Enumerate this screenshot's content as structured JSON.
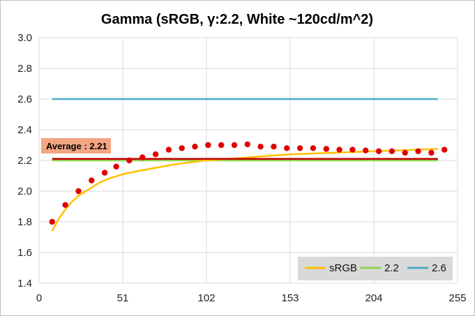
{
  "chart_data": {
    "type": "line",
    "title": "Gamma (sRGB, γ:2.2, White ~120cd/m^2)",
    "xlabel": "",
    "ylabel": "",
    "xlim": [
      0,
      255
    ],
    "ylim": [
      1.4,
      3.0
    ],
    "x_ticks": [
      0,
      51,
      102,
      153,
      204,
      255
    ],
    "y_ticks": [
      1.4,
      1.6,
      1.8,
      2.0,
      2.2,
      2.4,
      2.6,
      2.8,
      3.0
    ],
    "y_tick_labels": [
      "1.4",
      "1.6",
      "1.8",
      "2.0",
      "2.2",
      "2.4",
      "2.6",
      "2.8",
      "3.0"
    ],
    "grid": true,
    "legend_position": "bottom-right",
    "colors": {
      "srgb": "#ffc000",
      "g22": "#92d050",
      "g26": "#4bacc6",
      "measured": "#e00000",
      "average": "#c00000",
      "annotation_bg": "#f4a582",
      "legend_bg": "#d9d9d9",
      "grid": "#d9d9d9"
    },
    "series": [
      {
        "name": "sRGB",
        "x": [
          8,
          12,
          16,
          20,
          24,
          30,
          36,
          42,
          51,
          60,
          70,
          80,
          90,
          102,
          115,
          128,
          140,
          153,
          166,
          179,
          192,
          204,
          217,
          230,
          243
        ],
        "y": [
          1.74,
          1.82,
          1.88,
          1.93,
          1.97,
          2.01,
          2.05,
          2.08,
          2.11,
          2.13,
          2.15,
          2.17,
          2.185,
          2.2,
          2.21,
          2.22,
          2.23,
          2.24,
          2.245,
          2.25,
          2.255,
          2.26,
          2.265,
          2.27,
          2.275
        ]
      },
      {
        "name": "2.2",
        "x": [
          8,
          243
        ],
        "y": [
          2.2,
          2.2
        ]
      },
      {
        "name": "2.6",
        "x": [
          8,
          243
        ],
        "y": [
          2.6,
          2.6
        ]
      }
    ],
    "measured": {
      "x": [
        8,
        16,
        24,
        32,
        40,
        47,
        55,
        63,
        71,
        79,
        87,
        95,
        103,
        111,
        119,
        127,
        135,
        143,
        151,
        159,
        167,
        175,
        183,
        191,
        199,
        207,
        215,
        223,
        231,
        239,
        247
      ],
      "y": [
        1.8,
        1.91,
        2.0,
        2.07,
        2.12,
        2.16,
        2.2,
        2.22,
        2.24,
        2.27,
        2.28,
        2.29,
        2.3,
        2.3,
        2.3,
        2.305,
        2.29,
        2.29,
        2.28,
        2.28,
        2.28,
        2.275,
        2.27,
        2.27,
        2.265,
        2.26,
        2.26,
        2.25,
        2.26,
        2.25,
        2.27
      ]
    },
    "average": {
      "value": 2.21,
      "label": "Average : 2.21",
      "x": [
        8,
        243
      ]
    }
  }
}
